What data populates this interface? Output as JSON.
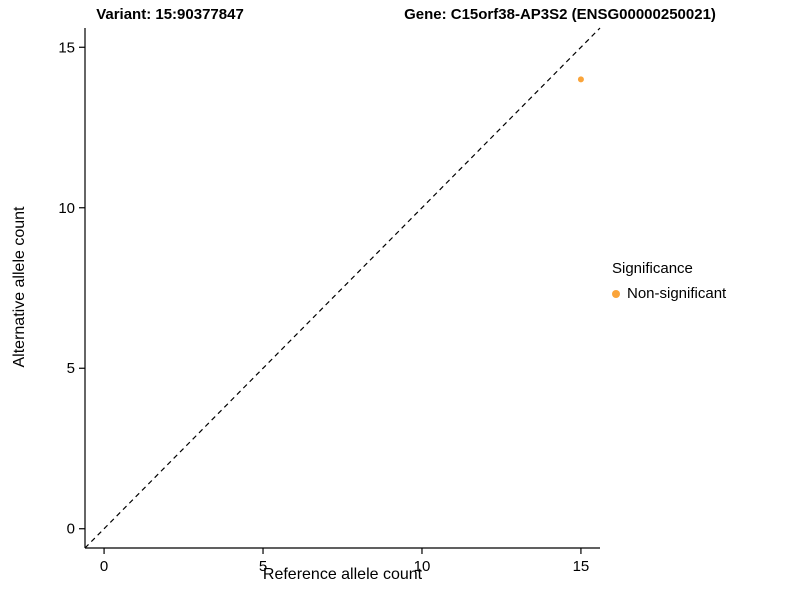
{
  "titles": {
    "left": "Variant: 15:90377847",
    "right": "Gene: C15orf38-AP3S2 (ENSG00000250021)"
  },
  "chart_data": {
    "type": "scatter",
    "xlabel": "Reference allele count",
    "ylabel": "Alternative allele count",
    "xlim": [
      -0.6,
      15.6
    ],
    "ylim": [
      -0.6,
      15.6
    ],
    "xticks": [
      0,
      5,
      10,
      15
    ],
    "yticks": [
      0,
      5,
      10,
      15
    ],
    "grid": false,
    "points": [
      {
        "x": 15,
        "y": 14,
        "series": "Non-significant"
      }
    ],
    "identity_line": {
      "style": "dashed",
      "from": [
        -0.6,
        -0.6
      ],
      "to": [
        15.6,
        15.6
      ],
      "color": "#000000"
    },
    "legend": {
      "position": "right",
      "title": "Significance",
      "entries": [
        {
          "label": "Non-significant",
          "color": "#FAA43A"
        }
      ]
    },
    "colors": {
      "point": "#FAA43A",
      "axis": "#000000",
      "tick_label": "#000000"
    }
  }
}
